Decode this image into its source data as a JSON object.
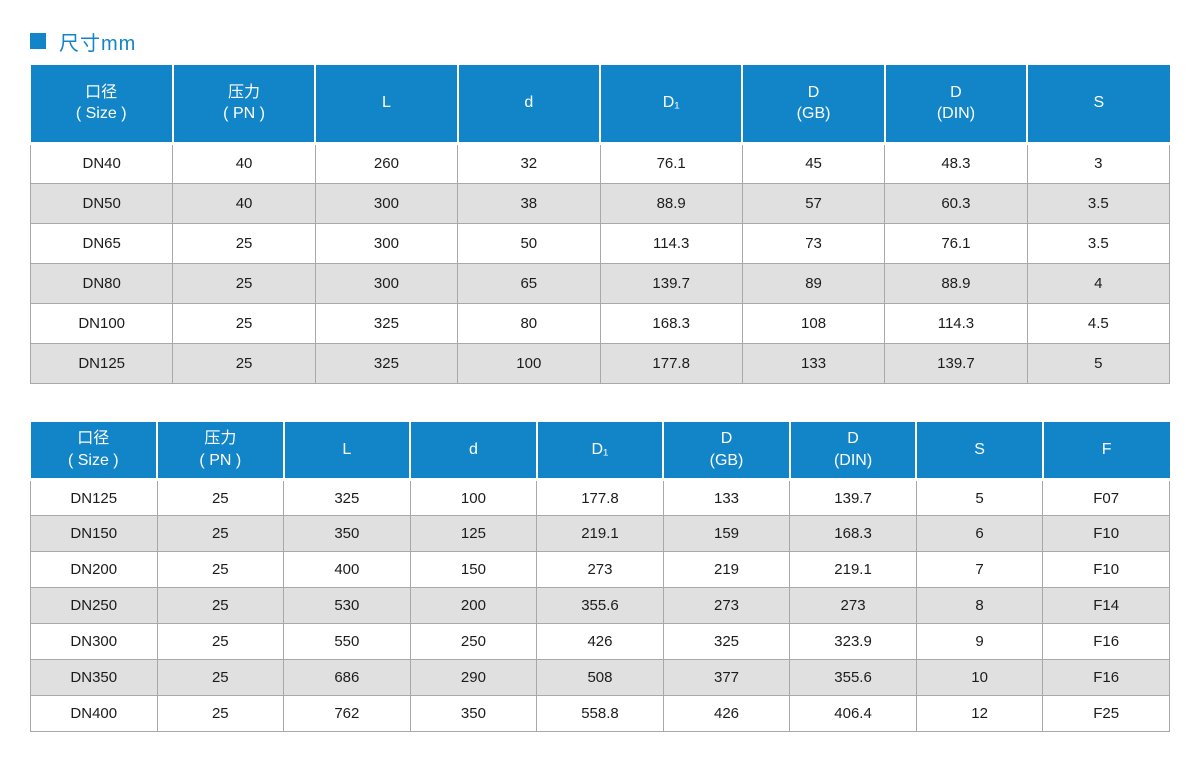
{
  "page": {
    "title": "尺寸mm",
    "accent_color": "#1285c9",
    "alt_row_color": "#e0e0e0"
  },
  "tables": [
    {
      "name": "dimension-table-small-sizes",
      "columns": [
        "口径\n( Size )",
        "压力\n( PN )",
        "L",
        "d",
        "D₁",
        "D\n(GB)",
        "D\n(DIN)",
        "S"
      ],
      "rows": [
        [
          "DN40",
          "40",
          "260",
          "32",
          "76.1",
          "45",
          "48.3",
          "3"
        ],
        [
          "DN50",
          "40",
          "300",
          "38",
          "88.9",
          "57",
          "60.3",
          "3.5"
        ],
        [
          "DN65",
          "25",
          "300",
          "50",
          "114.3",
          "73",
          "76.1",
          "3.5"
        ],
        [
          "DN80",
          "25",
          "300",
          "65",
          "139.7",
          "89",
          "88.9",
          "4"
        ],
        [
          "DN100",
          "25",
          "325",
          "80",
          "168.3",
          "108",
          "114.3",
          "4.5"
        ],
        [
          "DN125",
          "25",
          "325",
          "100",
          "177.8",
          "133",
          "139.7",
          "5"
        ]
      ]
    },
    {
      "name": "dimension-table-large-sizes",
      "columns": [
        "口径\n( Size )",
        "压力\n( PN )",
        "L",
        "d",
        "D₁",
        "D\n(GB)",
        "D\n(DIN)",
        "S",
        "F"
      ],
      "rows": [
        [
          "DN125",
          "25",
          "325",
          "100",
          "177.8",
          "133",
          "139.7",
          "5",
          "F07"
        ],
        [
          "DN150",
          "25",
          "350",
          "125",
          "219.1",
          "159",
          "168.3",
          "6",
          "F10"
        ],
        [
          "DN200",
          "25",
          "400",
          "150",
          "273",
          "219",
          "219.1",
          "7",
          "F10"
        ],
        [
          "DN250",
          "25",
          "530",
          "200",
          "355.6",
          "273",
          "273",
          "8",
          "F14"
        ],
        [
          "DN300",
          "25",
          "550",
          "250",
          "426",
          "325",
          "323.9",
          "9",
          "F16"
        ],
        [
          "DN350",
          "25",
          "686",
          "290",
          "508",
          "377",
          "355.6",
          "10",
          "F16"
        ],
        [
          "DN400",
          "25",
          "762",
          "350",
          "558.8",
          "426",
          "406.4",
          "12",
          "F25"
        ]
      ]
    }
  ]
}
